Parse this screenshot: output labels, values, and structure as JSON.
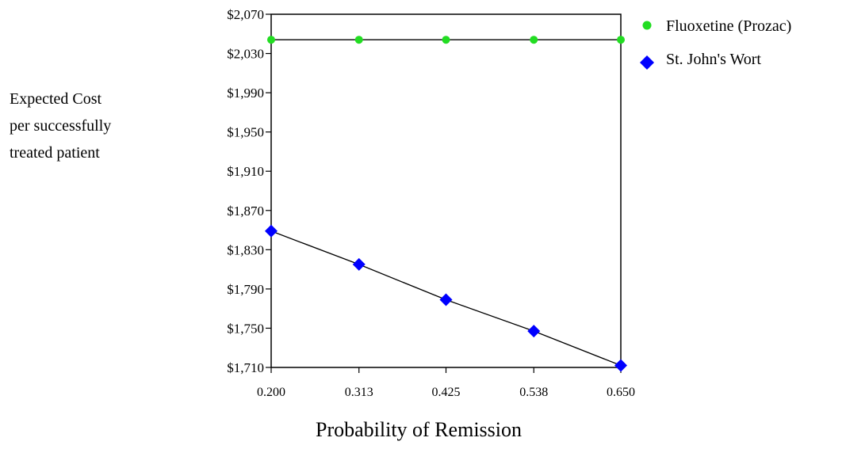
{
  "chart_data": {
    "type": "line",
    "ylabel_lines": [
      "Expected Cost",
      "per successfully",
      "treated patient"
    ],
    "xlabel": "Probability of Remission",
    "x": [
      0.2,
      0.313,
      0.425,
      0.538,
      0.65
    ],
    "x_tick_labels": [
      "0.200",
      "0.313",
      "0.425",
      "0.538",
      "0.650"
    ],
    "y_tick_labels": [
      "$2,070",
      "$2,030",
      "$1,990",
      "$1,950",
      "$1,910",
      "$1,870",
      "$1,830",
      "$1,790",
      "$1,750",
      "$1,710"
    ],
    "y_ticks": [
      2070,
      2030,
      1990,
      1950,
      1910,
      1870,
      1830,
      1790,
      1750,
      1710
    ],
    "ylim": [
      1710,
      2070
    ],
    "xlim": [
      0.2,
      0.65
    ],
    "grid": false,
    "legend_position": "top-right",
    "series": [
      {
        "name": "Fluoxetine (Prozac)",
        "marker": "circle",
        "color": "#22dd22",
        "values": [
          2044,
          2044,
          2044,
          2044,
          2044
        ]
      },
      {
        "name": "St. John's Wort",
        "marker": "diamond",
        "color": "#0000ff",
        "values": [
          1849,
          1815,
          1779,
          1747,
          1712
        ]
      }
    ]
  }
}
